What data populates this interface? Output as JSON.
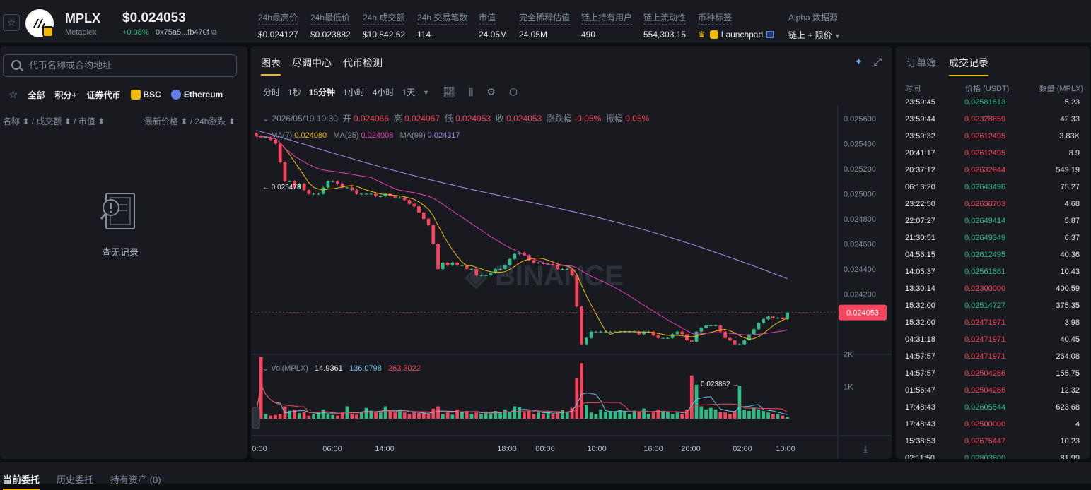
{
  "header": {
    "symbol": "MPLX",
    "name": "Metaplex",
    "price": "$0.024053",
    "change": "+0.08%",
    "address": "0x75a5...fb470f",
    "stats": [
      {
        "label": "24h最高价",
        "value": "$0.024127"
      },
      {
        "label": "24h最低价",
        "value": "$0.023882"
      },
      {
        "label": "24h 成交额",
        "value": "$10,842.62"
      },
      {
        "label": "24h 交易笔数",
        "value": "114"
      },
      {
        "label": "市值",
        "value": "24.05M"
      },
      {
        "label": "完全稀释估值",
        "value": "24.05M"
      },
      {
        "label": "链上持有用户",
        "value": "490"
      },
      {
        "label": "链上流动性",
        "value": "554,303.15"
      }
    ],
    "tag_label": "币种标签",
    "tag_value": "Launchpad",
    "alpha_label": "Alpha 数据源",
    "alpha_value": "链上 + 限价"
  },
  "left": {
    "search_placeholder": "代币名称或合约地址",
    "filters": [
      "全部",
      "积分+",
      "证券代币",
      "BSC",
      "Ethereum"
    ],
    "col_left": "名称 ⬍ / 成交额 ⬍ / 市值 ⬍",
    "col_right": "最新价格 ⬍ / 24h涨跌 ⬍",
    "empty": "查无记录"
  },
  "chart": {
    "tabs": [
      "图表",
      "尽调中心",
      "代币检测"
    ],
    "intervals": [
      "分时",
      "1秒",
      "15分钟",
      "1小时",
      "4小时",
      "1天"
    ],
    "ohlc": {
      "date": "2026/05/19 10:30",
      "open_label": "开",
      "open": "0.024066",
      "high_label": "高",
      "high": "0.024067",
      "low_label": "低",
      "low": "0.024053",
      "close_label": "收",
      "close": "0.024053",
      "chg_label": "涨跌幅",
      "chg": "-0.05%",
      "amp_label": "振幅",
      "amp": "0.05%"
    },
    "ma": {
      "ma7_label": "MA(7)",
      "ma7": "0.024080",
      "ma25_label": "MA(25)",
      "ma25": "0.024008",
      "ma99_label": "MA(99)",
      "ma99": "0.024317"
    },
    "vol": {
      "label": "Vol(MPLX)",
      "v1": "14.9361",
      "v2": "136.0798",
      "v3": "263.3022"
    },
    "watermark": "BINANCE",
    "colors": {
      "up": "#2ebd85",
      "down": "#f6465d",
      "ma7": "#f0b90b",
      "ma25": "#e040b0",
      "ma99": "#b18cf0"
    }
  },
  "chart_data": {
    "type": "candlestick",
    "title": "",
    "y_ticks": [
      "0.025600",
      "0.025400",
      "0.025200",
      "0.025000",
      "0.024800",
      "0.024600",
      "0.024400",
      "0.024200"
    ],
    "ylim": [
      0.02382,
      0.02565
    ],
    "x_ticks": [
      "0:00",
      "06:00",
      "14:00",
      "18:00",
      "00:00",
      "10:00",
      "16:00",
      "20:00",
      "02:00",
      "10:00"
    ],
    "current_price": "0.024053",
    "high_marker": "0.025478",
    "low_marker": "0.023882",
    "vol_ticks": [
      "2K",
      "1K"
    ],
    "close": [
      0.02546,
      0.02545,
      0.02545,
      0.02543,
      0.0254,
      0.02525,
      0.0251,
      0.0251,
      0.02505,
      0.02508,
      0.02503,
      0.025,
      0.025,
      0.025,
      0.02505,
      0.0251,
      0.0251,
      0.02508,
      0.02505,
      0.02505,
      0.02503,
      0.025,
      0.025,
      0.025,
      0.025,
      0.02498,
      0.02498,
      0.025,
      0.02498,
      0.02497,
      0.02497,
      0.02495,
      0.02492,
      0.0249,
      0.02485,
      0.0248,
      0.02475,
      0.0246,
      0.0244,
      0.02445,
      0.02443,
      0.02445,
      0.02443,
      0.02443,
      0.0244,
      0.0244,
      0.02435,
      0.02435,
      0.02435,
      0.02437,
      0.0244,
      0.0244,
      0.02443,
      0.02448,
      0.02452,
      0.02453,
      0.02451,
      0.02447,
      0.02445,
      0.02445,
      0.02444,
      0.02444,
      0.02443,
      0.0244,
      0.0244,
      0.0244,
      0.02435,
      0.0241,
      0.0238,
      0.02385,
      0.0239,
      0.0239,
      0.0239,
      0.0239,
      0.0239,
      0.0239,
      0.0239,
      0.0239,
      0.0239,
      0.0239,
      0.02388,
      0.0239,
      0.0239,
      0.02387,
      0.02385,
      0.02385,
      0.02385,
      0.02388,
      0.0239,
      0.02388,
      0.02383,
      0.02382,
      0.0239,
      0.02393,
      0.02395,
      0.02395,
      0.02395,
      0.0239,
      0.02385,
      0.02383,
      0.0238,
      0.0238,
      0.02383,
      0.02388,
      0.02392,
      0.02397,
      0.024,
      0.02402,
      0.02401,
      0.02401,
      0.024,
      0.02405
    ],
    "volume": [
      200,
      2000,
      150,
      100,
      120,
      150,
      400,
      260,
      300,
      180,
      220,
      100,
      150,
      200,
      300,
      150,
      120,
      100,
      200,
      400,
      150,
      130,
      200,
      350,
      260,
      200,
      200,
      400,
      250,
      200,
      300,
      200,
      150,
      200,
      180,
      200,
      150,
      320,
      400,
      150,
      200,
      130,
      300,
      230,
      250,
      150,
      200,
      150,
      230,
      150,
      250,
      180,
      300,
      220,
      400,
      380,
      200,
      250,
      150,
      200,
      150,
      230,
      150,
      200,
      280,
      230,
      350,
      1300,
      1800,
      450,
      200,
      150,
      300,
      230,
      250,
      220,
      280,
      230,
      150,
      260,
      220,
      330,
      150,
      200,
      300,
      230,
      240,
      150,
      200,
      150,
      300,
      1400,
      1100,
      400,
      300,
      350,
      300,
      220,
      200,
      150,
      250,
      1050,
      300,
      250,
      360,
      300,
      250,
      200,
      150,
      150,
      100,
      60
    ],
    "units_note": ""
  },
  "trades": {
    "tabs": [
      "订单簿",
      "成交记录"
    ],
    "head": {
      "time": "时间",
      "price": "价格 (USDT)",
      "qty": "数量 (MPLX)"
    },
    "rows": [
      {
        "t": "23:59:45",
        "p": "0.02581613",
        "q": "5.23",
        "d": "up"
      },
      {
        "t": "23:59:44",
        "p": "0.02328859",
        "q": "42.33",
        "d": "down"
      },
      {
        "t": "23:59:32",
        "p": "0.02612495",
        "q": "3.83K",
        "d": "down"
      },
      {
        "t": "20:41:17",
        "p": "0.02612495",
        "q": "8.9",
        "d": "down"
      },
      {
        "t": "20:37:12",
        "p": "0.02632944",
        "q": "549.19",
        "d": "down"
      },
      {
        "t": "06:13:20",
        "p": "0.02643496",
        "q": "75.27",
        "d": "up"
      },
      {
        "t": "23:22:50",
        "p": "0.02638703",
        "q": "4.68",
        "d": "down"
      },
      {
        "t": "22:07:27",
        "p": "0.02649414",
        "q": "5.87",
        "d": "up"
      },
      {
        "t": "21:30:51",
        "p": "0.02649349",
        "q": "6.37",
        "d": "up"
      },
      {
        "t": "04:56:15",
        "p": "0.02612495",
        "q": "40.36",
        "d": "up"
      },
      {
        "t": "14:05:37",
        "p": "0.02561861",
        "q": "10.43",
        "d": "up"
      },
      {
        "t": "13:30:14",
        "p": "0.02300000",
        "q": "400.59",
        "d": "down"
      },
      {
        "t": "15:32:00",
        "p": "0.02514727",
        "q": "375.35",
        "d": "up"
      },
      {
        "t": "15:32:00",
        "p": "0.02471971",
        "q": "3.98",
        "d": "down"
      },
      {
        "t": "04:31:18",
        "p": "0.02471971",
        "q": "40.45",
        "d": "down"
      },
      {
        "t": "14:57:57",
        "p": "0.02471971",
        "q": "264.08",
        "d": "down"
      },
      {
        "t": "14:57:57",
        "p": "0.02504266",
        "q": "155.75",
        "d": "down"
      },
      {
        "t": "01:56:47",
        "p": "0.02504266",
        "q": "12.32",
        "d": "down"
      },
      {
        "t": "17:48:43",
        "p": "0.02605544",
        "q": "623.68",
        "d": "up"
      },
      {
        "t": "17:48:43",
        "p": "0.02500000",
        "q": "4",
        "d": "down"
      },
      {
        "t": "15:38:53",
        "p": "0.02675447",
        "q": "10.23",
        "d": "down"
      },
      {
        "t": "02:11:50",
        "p": "0.02803800",
        "q": "81.99",
        "d": "up"
      }
    ]
  },
  "bottom": {
    "tabs": [
      "当前委托",
      "历史委托",
      "持有资产 (0)"
    ]
  }
}
